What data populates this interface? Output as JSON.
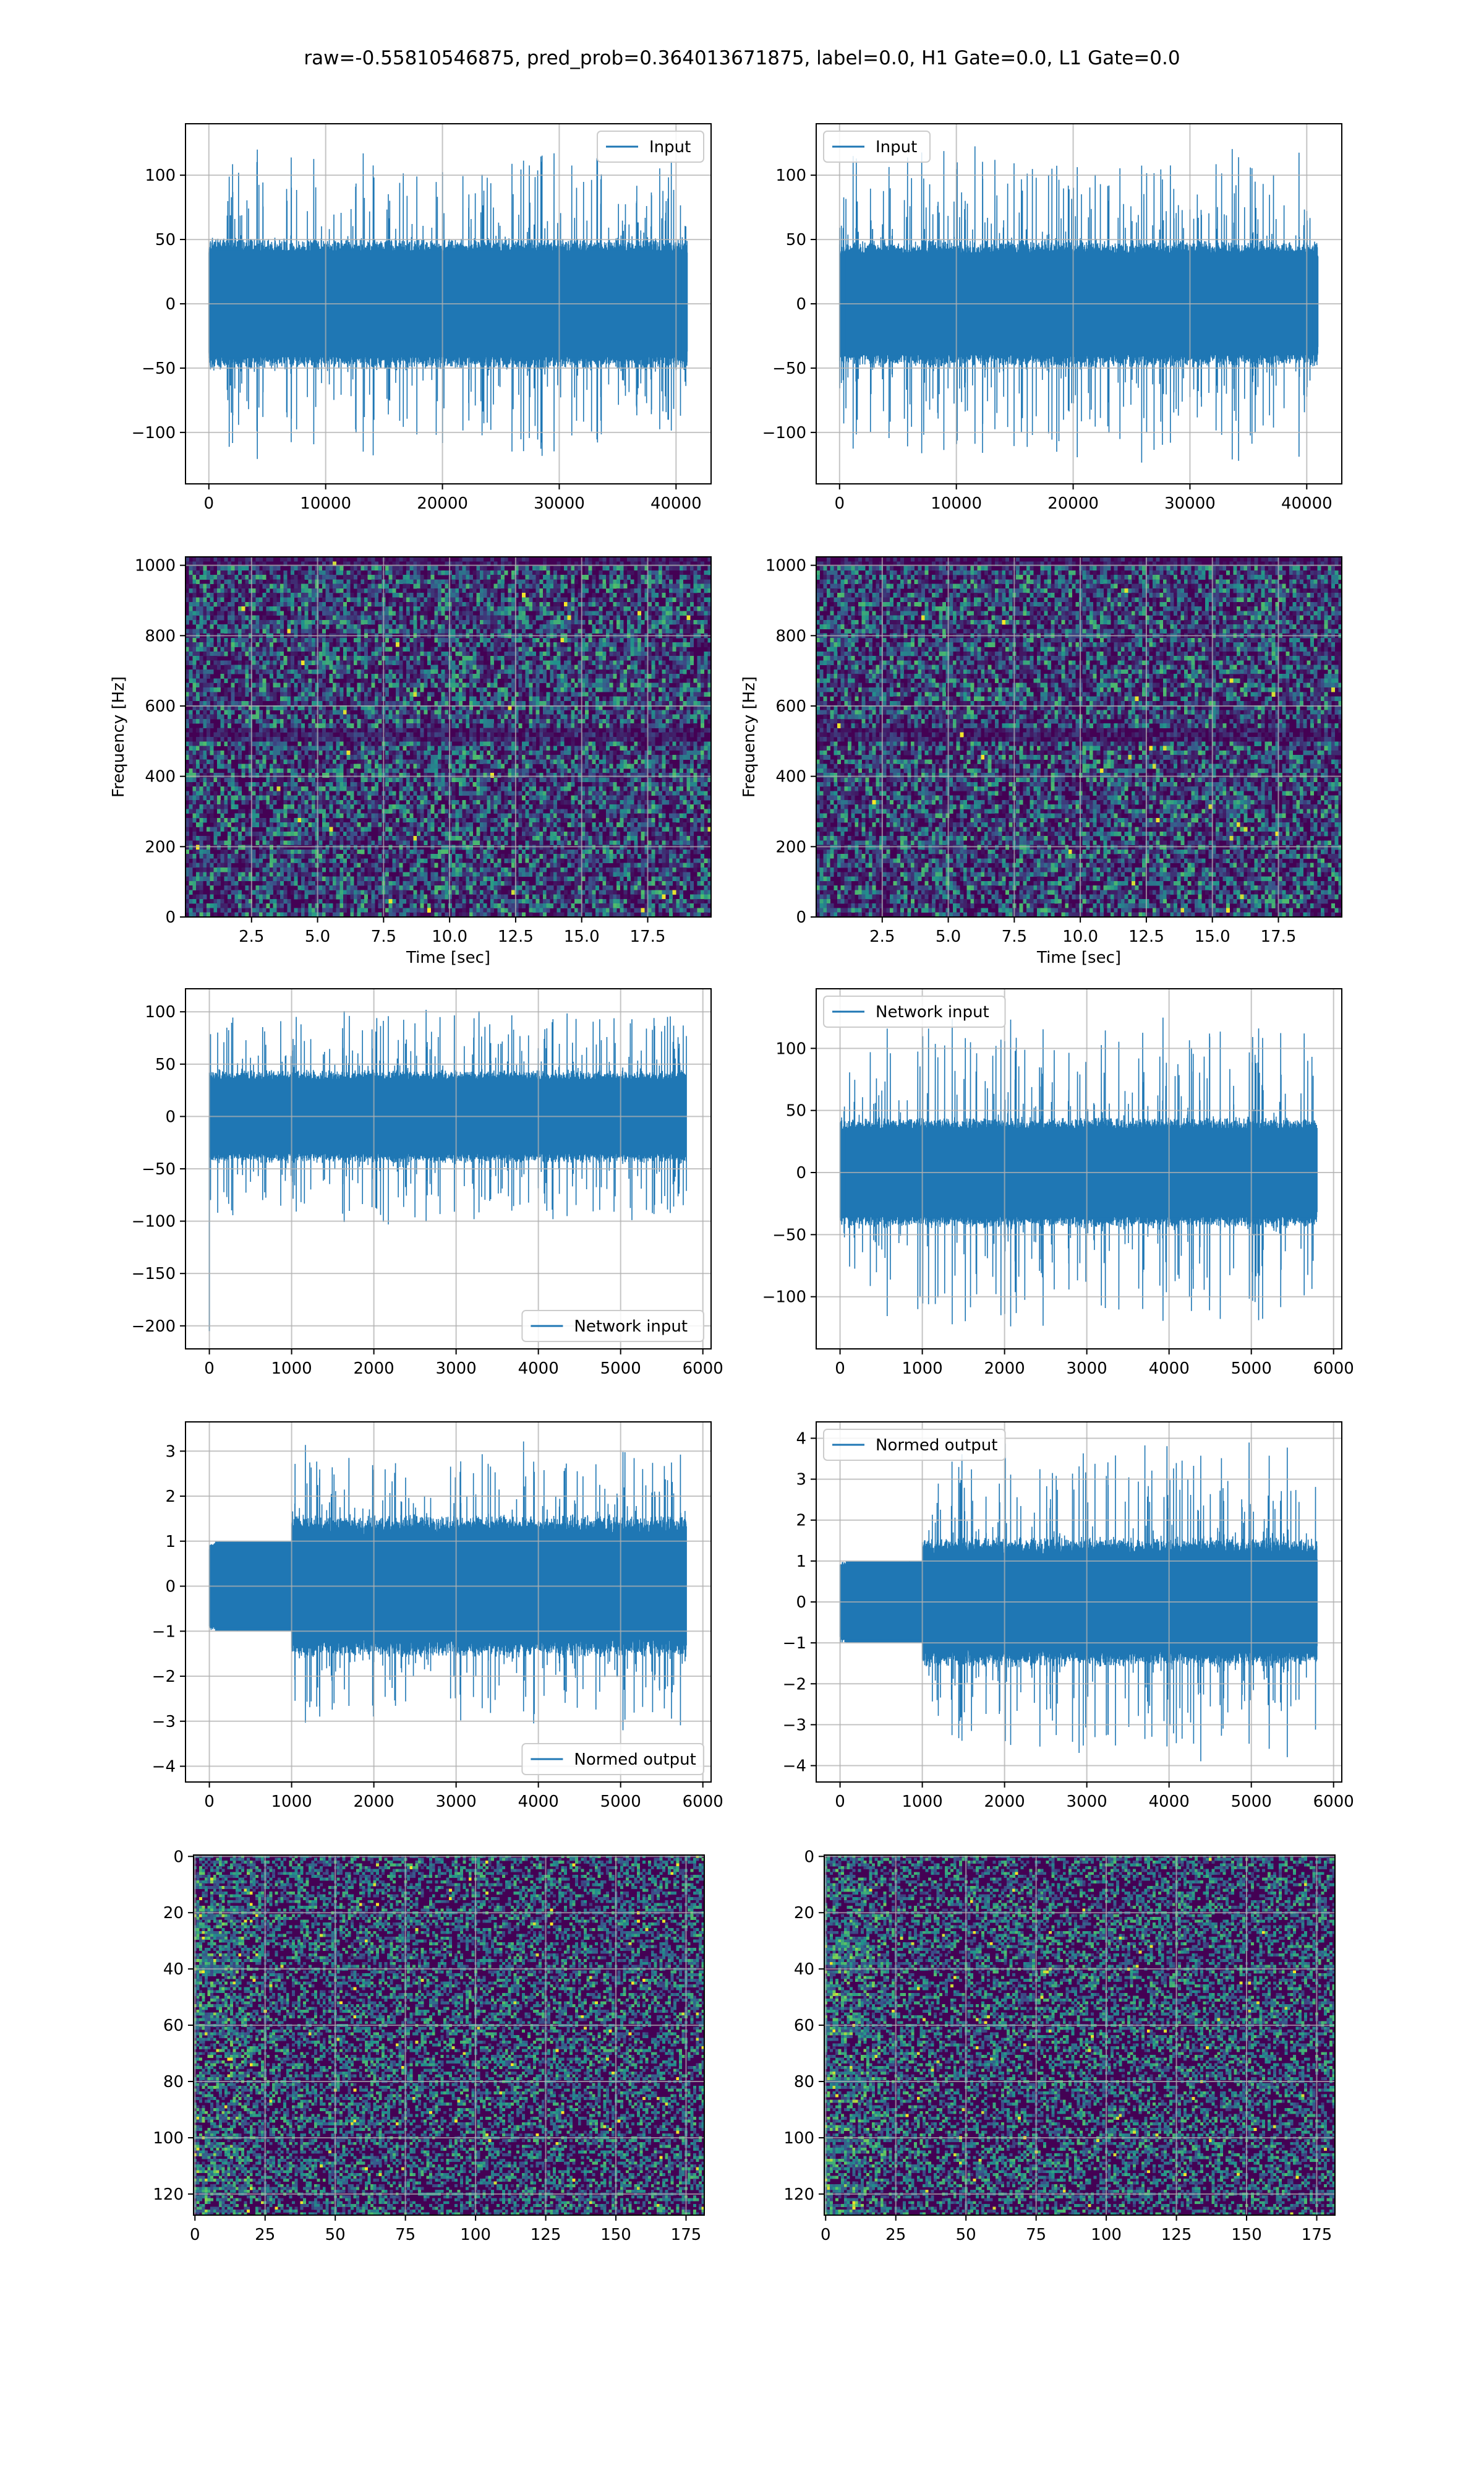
{
  "figure": {
    "suptitle": "raw=-0.55810546875, pred_prob=0.364013671875, label=0.0, H1 Gate=0.0, L1 Gate=0.0",
    "colors": {
      "line": "#1f77b4",
      "grid": "#b0b0b0",
      "spine": "#000000",
      "viridis_low": "#440154",
      "viridis_mid": "#3b528b",
      "viridis_teal": "#21918c",
      "viridis_green": "#5ec962",
      "viridis_high": "#fde725"
    }
  },
  "chart_data": [
    {
      "id": "raw-h1",
      "type": "line",
      "legend": {
        "label": "Input",
        "loc": "upper right"
      },
      "xlim": [
        -2000,
        43000
      ],
      "ylim": [
        -140,
        140
      ],
      "xticks": [
        0,
        10000,
        20000,
        30000,
        40000
      ],
      "yticks": [
        -100,
        -50,
        0,
        50,
        100
      ],
      "signal": {
        "n": 40960,
        "x_start": 0,
        "x_end": 40960,
        "core": 52,
        "spike": 125,
        "gate_end": null,
        "pre_amp": null
      },
      "grid": true
    },
    {
      "id": "raw-l1",
      "type": "line",
      "legend": {
        "label": "Input",
        "loc": "upper left"
      },
      "xlim": [
        -2000,
        43000
      ],
      "ylim": [
        -140,
        140
      ],
      "xticks": [
        0,
        10000,
        20000,
        30000,
        40000
      ],
      "yticks": [
        -100,
        -50,
        0,
        50,
        100
      ],
      "signal": {
        "n": 40960,
        "x_start": 0,
        "x_end": 40960,
        "core": 50,
        "spike": 128,
        "gate_end": null,
        "pre_amp": null
      },
      "grid": true
    },
    {
      "id": "spec-h1",
      "type": "heatmap",
      "xlabel": "Time [sec]",
      "ylabel": "Frequency [Hz]",
      "xlim": [
        0,
        19.9
      ],
      "ylim": [
        0,
        1024
      ],
      "xticks": [
        2.5,
        5.0,
        7.5,
        10.0,
        12.5,
        15.0,
        17.5
      ],
      "yticks": [
        0,
        200,
        400,
        600,
        800,
        1000
      ],
      "grid_cells": {
        "cols": 150,
        "rows": 80
      },
      "colormap": "viridis",
      "grid": true
    },
    {
      "id": "spec-l1",
      "type": "heatmap",
      "xlabel": "Time [sec]",
      "ylabel": "Frequency [Hz]",
      "xlim": [
        0,
        19.9
      ],
      "ylim": [
        0,
        1024
      ],
      "xticks": [
        2.5,
        5.0,
        7.5,
        10.0,
        12.5,
        15.0,
        17.5
      ],
      "yticks": [
        0,
        200,
        400,
        600,
        800,
        1000
      ],
      "grid_cells": {
        "cols": 150,
        "rows": 80
      },
      "colormap": "viridis",
      "grid": true
    },
    {
      "id": "net-h1",
      "type": "line",
      "legend": {
        "label": "Network input",
        "loc": "lower right"
      },
      "xlim": [
        -290,
        6100
      ],
      "ylim": [
        -222,
        122
      ],
      "xticks": [
        0,
        1000,
        2000,
        3000,
        4000,
        5000,
        6000
      ],
      "yticks": [
        -200,
        -150,
        -100,
        -50,
        0,
        50,
        100
      ],
      "signal": {
        "n": 5800,
        "x_start": 0,
        "x_end": 5800,
        "core": 45,
        "spike": 105,
        "gate_end": null,
        "pre_amp": null,
        "outlier": {
          "x": 0,
          "y": -205
        }
      },
      "grid": true
    },
    {
      "id": "net-l1",
      "type": "line",
      "legend": {
        "label": "Network input",
        "loc": "upper left"
      },
      "xlim": [
        -290,
        6100
      ],
      "ylim": [
        -142,
        148
      ],
      "xticks": [
        0,
        1000,
        2000,
        3000,
        4000,
        5000,
        6000
      ],
      "yticks": [
        -100,
        -50,
        0,
        50,
        100
      ],
      "signal": {
        "n": 5800,
        "x_start": 0,
        "x_end": 5800,
        "core": 45,
        "spike": 128,
        "gate_end": null,
        "pre_amp": null
      },
      "grid": true
    },
    {
      "id": "norm-h1",
      "type": "line",
      "legend": {
        "label": "Normed output",
        "loc": "lower right"
      },
      "xlim": [
        -290,
        6100
      ],
      "ylim": [
        -4.35,
        3.65
      ],
      "xticks": [
        0,
        1000,
        2000,
        3000,
        4000,
        5000,
        6000
      ],
      "yticks": [
        -4,
        -3,
        -2,
        -1,
        0,
        1,
        2,
        3
      ],
      "signal": {
        "n": 5800,
        "x_start": 0,
        "x_end": 5800,
        "core": 1.6,
        "spike": 3.3,
        "gate_end": 1000,
        "pre_amp": 1.0
      },
      "grid": true
    },
    {
      "id": "norm-l1",
      "type": "line",
      "legend": {
        "label": "Normed output",
        "loc": "upper left"
      },
      "xlim": [
        -290,
        6100
      ],
      "ylim": [
        -4.4,
        4.4
      ],
      "xticks": [
        0,
        1000,
        2000,
        3000,
        4000,
        5000,
        6000
      ],
      "yticks": [
        -4,
        -3,
        -2,
        -1,
        0,
        1,
        2,
        3,
        4
      ],
      "signal": {
        "n": 5800,
        "x_start": 0,
        "x_end": 5800,
        "core": 1.6,
        "spike": 4.1,
        "gate_end": 1000,
        "pre_amp": 1.0
      },
      "grid": true
    },
    {
      "id": "img-h1",
      "type": "heatmap",
      "xlim": [
        -0.5,
        181.5
      ],
      "ylim": [
        127.5,
        -0.5
      ],
      "xticks": [
        0,
        25,
        50,
        75,
        100,
        125,
        150,
        175
      ],
      "yticks": [
        0,
        20,
        40,
        60,
        80,
        100,
        120
      ],
      "grid_cells": {
        "cols": 182,
        "rows": 128
      },
      "colormap": "viridis",
      "grid": true
    },
    {
      "id": "img-l1",
      "type": "heatmap",
      "xlim": [
        -0.5,
        181.5
      ],
      "ylim": [
        127.5,
        -0.5
      ],
      "xticks": [
        0,
        25,
        50,
        75,
        100,
        125,
        150,
        175
      ],
      "yticks": [
        0,
        20,
        40,
        60,
        80,
        100,
        120
      ],
      "grid_cells": {
        "cols": 182,
        "rows": 128
      },
      "colormap": "viridis",
      "grid": true
    }
  ]
}
